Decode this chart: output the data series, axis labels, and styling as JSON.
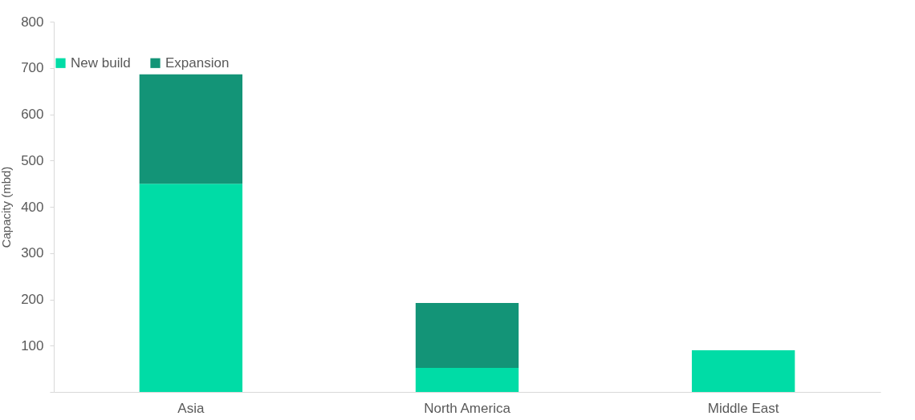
{
  "chart_data": {
    "type": "bar",
    "ylabel": "Capacity (mbd)",
    "categories": [
      "Asia",
      "North America",
      "Middle East"
    ],
    "stacked": true,
    "series": [
      {
        "name": "New build",
        "color": "#00dca6",
        "values": [
          450,
          52,
          90
        ]
      },
      {
        "name": "Expansion",
        "color": "#139477",
        "values": [
          236,
          140,
          null
        ]
      }
    ],
    "ylim": [
      0,
      800
    ],
    "yticks": [
      {
        "value": 0,
        "label": null
      },
      100,
      200,
      300,
      400,
      500,
      600,
      700,
      800
    ],
    "grid": false,
    "legend": "top"
  }
}
